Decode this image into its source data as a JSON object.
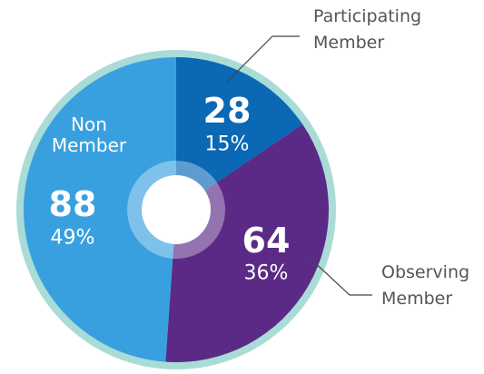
{
  "chart_data": {
    "type": "pie",
    "categories": [
      "Participating Member",
      "Observing Member",
      "Non Member"
    ],
    "values": [
      28,
      64,
      88
    ],
    "percent_labels": [
      "15%",
      "36%",
      "49%"
    ],
    "colors": [
      "#0a68b4",
      "#5b2a86",
      "#39a0df"
    ]
  }
}
